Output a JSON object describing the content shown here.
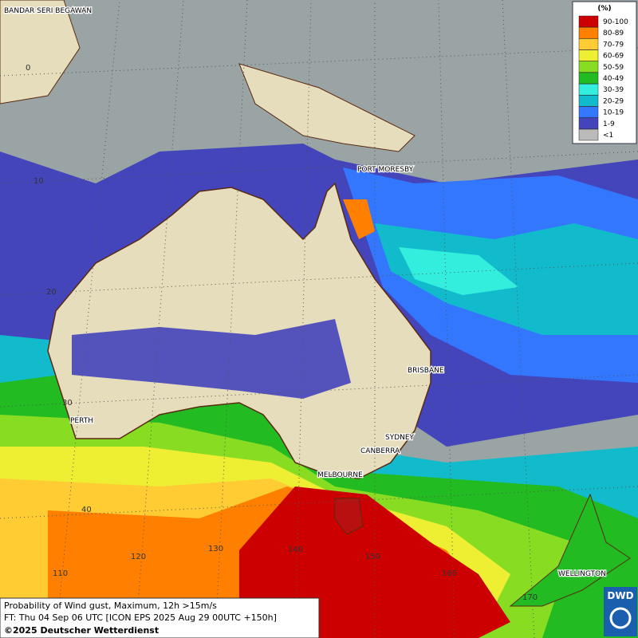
{
  "map": {
    "places": [
      "BANDAR SERI BEGAWAN",
      "PORT MORESBY",
      "BRISBANE",
      "PERTH",
      "SYDNEY",
      "CANBERRA",
      "MELBOURNE",
      "WELLINGTON"
    ],
    "latitudes": [
      "0",
      "10",
      "20",
      "30",
      "40"
    ],
    "longitudes": [
      "110",
      "120",
      "130",
      "140",
      "150",
      "160",
      "170"
    ]
  },
  "legend": {
    "title": "(%)",
    "entries": [
      {
        "label": "90-100",
        "color": "#cc0000"
      },
      {
        "label": "80-89",
        "color": "#ff7f00"
      },
      {
        "label": "70-79",
        "color": "#ffcc33"
      },
      {
        "label": "60-69",
        "color": "#eeee33"
      },
      {
        "label": "50-59",
        "color": "#88dd22"
      },
      {
        "label": "40-49",
        "color": "#22bb22"
      },
      {
        "label": "30-39",
        "color": "#33eedd"
      },
      {
        "label": "20-29",
        "color": "#11bbcc"
      },
      {
        "label": "10-19",
        "color": "#3377ff"
      },
      {
        "label": "1-9",
        "color": "#4444bb"
      },
      {
        "label": "<1",
        "color": "#bbbbbb"
      }
    ]
  },
  "footer": {
    "line1": "Probability of Wind gust, Maximum, 12h >15m/s",
    "line2": "FT: Thu 04 Sep 06 UTC [ICON EPS 2025 Aug 29 00UTC +150h]",
    "line3": "©2025 Deutscher Wetterdienst",
    "logo": "DWD"
  }
}
